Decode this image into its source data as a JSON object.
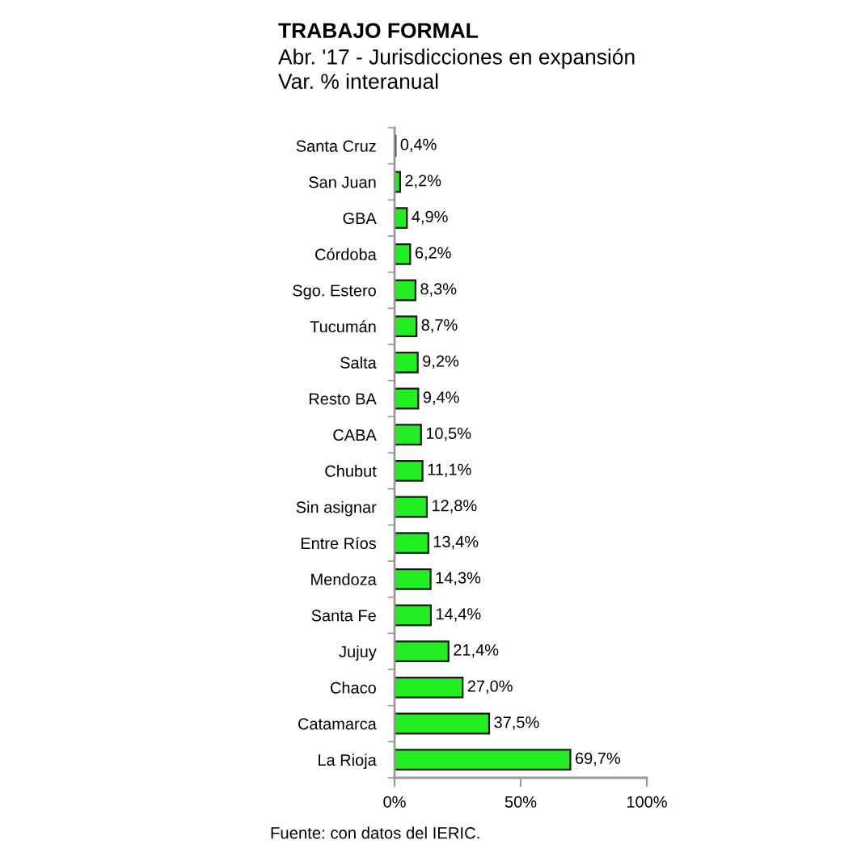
{
  "chart_data": {
    "type": "bar",
    "orientation": "horizontal",
    "title": "TRABAJO FORMAL",
    "subtitle": "Abr. '17 - Jurisdicciones en expansión\nVar. % interanual",
    "categories": [
      "Santa Cruz",
      "San Juan",
      "GBA",
      "Córdoba",
      "Sgo. Estero",
      "Tucumán",
      "Salta",
      "Resto BA",
      "CABA",
      "Chubut",
      "Sin asignar",
      "Entre Ríos",
      "Mendoza",
      "Santa Fe",
      "Jujuy",
      "Chaco",
      "Catamarca",
      "La Rioja"
    ],
    "values": [
      0.4,
      2.2,
      4.9,
      6.2,
      8.3,
      8.7,
      9.2,
      9.4,
      10.5,
      11.1,
      12.8,
      13.4,
      14.3,
      14.4,
      21.4,
      27.0,
      37.5,
      69.7
    ],
    "value_labels": [
      "0,4%",
      "2,2%",
      "4,9%",
      "6,2%",
      "8,3%",
      "8,7%",
      "9,2%",
      "9,4%",
      "10,5%",
      "11,1%",
      "12,8%",
      "13,4%",
      "14,3%",
      "14,4%",
      "21,4%",
      "27,0%",
      "37,5%",
      "69,7%"
    ],
    "color": "#22ee22",
    "xlim": [
      0,
      100
    ],
    "xticks": [
      {
        "value": 0,
        "label": "0%"
      },
      {
        "value": 50,
        "label": "50%"
      },
      {
        "value": 100,
        "label": "100%"
      }
    ],
    "grid": false,
    "annotations": [
      "Fuente: con datos del IERIC."
    ]
  }
}
